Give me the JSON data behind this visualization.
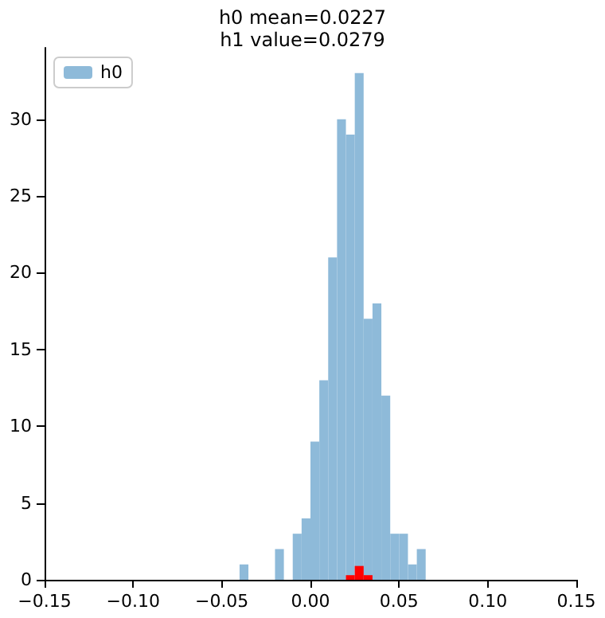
{
  "chart_data": {
    "type": "histogram",
    "title": "h0 mean=0.0227",
    "subtitle": "h1 value=0.0279",
    "bins": [
      -0.04,
      -0.035,
      -0.03,
      -0.025,
      -0.02,
      -0.015,
      -0.01,
      -0.005,
      0,
      0.005,
      0.01,
      0.015,
      0.02,
      0.025,
      0.03,
      0.035,
      0.04,
      0.045,
      0.05,
      0.055,
      0.06,
      0.065
    ],
    "series": [
      {
        "name": "h0",
        "color": "#8ebad9",
        "values": [
          1,
          0,
          0,
          0,
          2,
          0,
          3,
          4,
          9,
          13,
          21,
          30,
          29,
          33,
          17,
          18,
          12,
          3,
          3,
          1,
          2
        ]
      },
      {
        "color": "#ff0000",
        "values": [
          0,
          0,
          0,
          0,
          0,
          0,
          0,
          0,
          0,
          0,
          0,
          0,
          0.3,
          0.9,
          0.3,
          0,
          0,
          0,
          0,
          0,
          0
        ]
      }
    ],
    "xlim": [
      -0.15,
      0.15
    ],
    "xticks": [
      {
        "value": -0.15,
        "label": "−0.15"
      },
      {
        "value": -0.1,
        "label": "−0.10"
      },
      {
        "value": -0.05,
        "label": "−0.05"
      },
      {
        "value": 0,
        "label": "0.00"
      },
      {
        "value": 0.05,
        "label": "0.05"
      },
      {
        "value": 0.1,
        "label": "0.10"
      },
      {
        "value": 0.15,
        "label": "0.15"
      }
    ],
    "ylim": [
      0,
      34.65
    ],
    "yticks": [
      0,
      5,
      10,
      15,
      20,
      25,
      30
    ],
    "legend": "top left",
    "grid": false
  }
}
